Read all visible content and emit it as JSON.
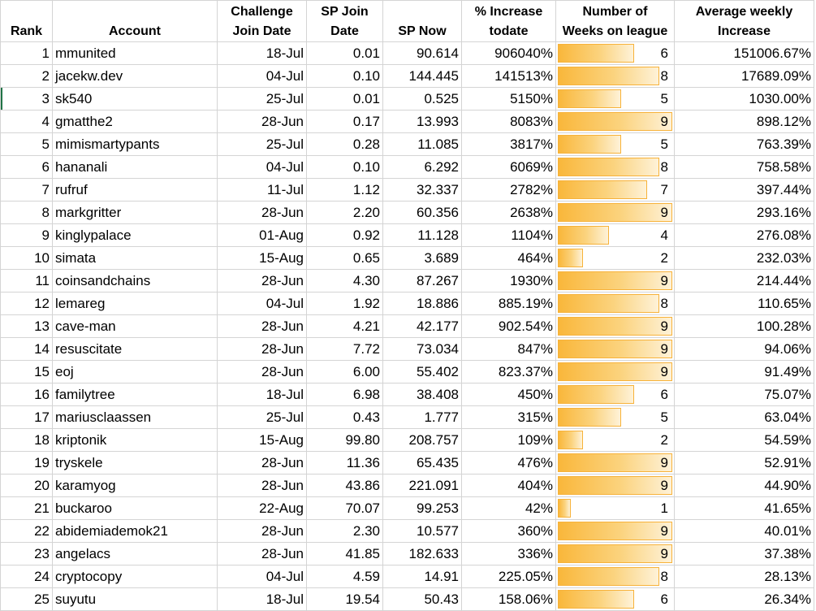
{
  "headers": {
    "rank": "Rank",
    "account": "Account",
    "join_line1": "Challenge",
    "join_line2": "Join Date",
    "sp_join_line1": "SP Join",
    "sp_join_line2": "Date",
    "sp_now": "SP Now",
    "increase_line1": "% Increase",
    "increase_line2": "todate",
    "weeks_line1": "Number of",
    "weeks_line2": "Weeks on league",
    "avg_line1": "Average weekly",
    "avg_line2": "Increase"
  },
  "weeks_max": 9,
  "bar_color": "#f9b73b",
  "rows": [
    {
      "rank": "1",
      "account": "mmunited",
      "join": "18-Jul",
      "sp_join": "0.01",
      "sp_now": "90.614",
      "increase": "906040%",
      "weeks": 6,
      "avg": "151006.67%"
    },
    {
      "rank": "2",
      "account": "jacekw.dev",
      "join": "04-Jul",
      "sp_join": "0.10",
      "sp_now": "144.445",
      "increase": "141513%",
      "weeks": 8,
      "avg": "17689.09%"
    },
    {
      "rank": "3",
      "account": "sk540",
      "join": "25-Jul",
      "sp_join": "0.01",
      "sp_now": "0.525",
      "increase": "5150%",
      "weeks": 5,
      "avg": "1030.00%"
    },
    {
      "rank": "4",
      "account": "gmatthe2",
      "join": "28-Jun",
      "sp_join": "0.17",
      "sp_now": "13.993",
      "increase": "8083%",
      "weeks": 9,
      "avg": "898.12%"
    },
    {
      "rank": "5",
      "account": "mimismartypants",
      "join": "25-Jul",
      "sp_join": "0.28",
      "sp_now": "11.085",
      "increase": "3817%",
      "weeks": 5,
      "avg": "763.39%"
    },
    {
      "rank": "6",
      "account": "hananali",
      "join": "04-Jul",
      "sp_join": "0.10",
      "sp_now": "6.292",
      "increase": "6069%",
      "weeks": 8,
      "avg": "758.58%"
    },
    {
      "rank": "7",
      "account": "rufruf",
      "join": "11-Jul",
      "sp_join": "1.12",
      "sp_now": "32.337",
      "increase": "2782%",
      "weeks": 7,
      "avg": "397.44%"
    },
    {
      "rank": "8",
      "account": "markgritter",
      "join": "28-Jun",
      "sp_join": "2.20",
      "sp_now": "60.356",
      "increase": "2638%",
      "weeks": 9,
      "avg": "293.16%"
    },
    {
      "rank": "9",
      "account": "kinglypalace",
      "join": "01-Aug",
      "sp_join": "0.92",
      "sp_now": "11.128",
      "increase": "1104%",
      "weeks": 4,
      "avg": "276.08%"
    },
    {
      "rank": "10",
      "account": "simata",
      "join": "15-Aug",
      "sp_join": "0.65",
      "sp_now": "3.689",
      "increase": "464%",
      "weeks": 2,
      "avg": "232.03%"
    },
    {
      "rank": "11",
      "account": "coinsandchains",
      "join": "28-Jun",
      "sp_join": "4.30",
      "sp_now": "87.267",
      "increase": "1930%",
      "weeks": 9,
      "avg": "214.44%"
    },
    {
      "rank": "12",
      "account": "lemareg",
      "join": "04-Jul",
      "sp_join": "1.92",
      "sp_now": "18.886",
      "increase": "885.19%",
      "weeks": 8,
      "avg": "110.65%"
    },
    {
      "rank": "13",
      "account": "cave-man",
      "join": "28-Jun",
      "sp_join": "4.21",
      "sp_now": "42.177",
      "increase": "902.54%",
      "weeks": 9,
      "avg": "100.28%"
    },
    {
      "rank": "14",
      "account": "resuscitate",
      "join": "28-Jun",
      "sp_join": "7.72",
      "sp_now": "73.034",
      "increase": "847%",
      "weeks": 9,
      "avg": "94.06%"
    },
    {
      "rank": "15",
      "account": "eoj",
      "join": "28-Jun",
      "sp_join": "6.00",
      "sp_now": "55.402",
      "increase": "823.37%",
      "weeks": 9,
      "avg": "91.49%"
    },
    {
      "rank": "16",
      "account": "familytree",
      "join": "18-Jul",
      "sp_join": "6.98",
      "sp_now": "38.408",
      "increase": "450%",
      "weeks": 6,
      "avg": "75.07%"
    },
    {
      "rank": "17",
      "account": "mariusclaassen",
      "join": "25-Jul",
      "sp_join": "0.43",
      "sp_now": "1.777",
      "increase": "315%",
      "weeks": 5,
      "avg": "63.04%"
    },
    {
      "rank": "18",
      "account": "kriptonik",
      "join": "15-Aug",
      "sp_join": "99.80",
      "sp_now": "208.757",
      "increase": "109%",
      "weeks": 2,
      "avg": "54.59%"
    },
    {
      "rank": "19",
      "account": "tryskele",
      "join": "28-Jun",
      "sp_join": "11.36",
      "sp_now": "65.435",
      "increase": "476%",
      "weeks": 9,
      "avg": "52.91%"
    },
    {
      "rank": "20",
      "account": "karamyog",
      "join": "28-Jun",
      "sp_join": "43.86",
      "sp_now": "221.091",
      "increase": "404%",
      "weeks": 9,
      "avg": "44.90%"
    },
    {
      "rank": "21",
      "account": "buckaroo",
      "join": "22-Aug",
      "sp_join": "70.07",
      "sp_now": "99.253",
      "increase": "42%",
      "weeks": 1,
      "avg": "41.65%"
    },
    {
      "rank": "22",
      "account": "abidemiademok21",
      "join": "28-Jun",
      "sp_join": "2.30",
      "sp_now": "10.577",
      "increase": "360%",
      "weeks": 9,
      "avg": "40.01%"
    },
    {
      "rank": "23",
      "account": "angelacs",
      "join": "28-Jun",
      "sp_join": "41.85",
      "sp_now": "182.633",
      "increase": "336%",
      "weeks": 9,
      "avg": "37.38%"
    },
    {
      "rank": "24",
      "account": "cryptocopy",
      "join": "04-Jul",
      "sp_join": "4.59",
      "sp_now": "14.91",
      "increase": "225.05%",
      "weeks": 8,
      "avg": "28.13%"
    },
    {
      "rank": "25",
      "account": "suyutu",
      "join": "18-Jul",
      "sp_join": "19.54",
      "sp_now": "50.43",
      "increase": "158.06%",
      "weeks": 6,
      "avg": "26.34%"
    }
  ]
}
